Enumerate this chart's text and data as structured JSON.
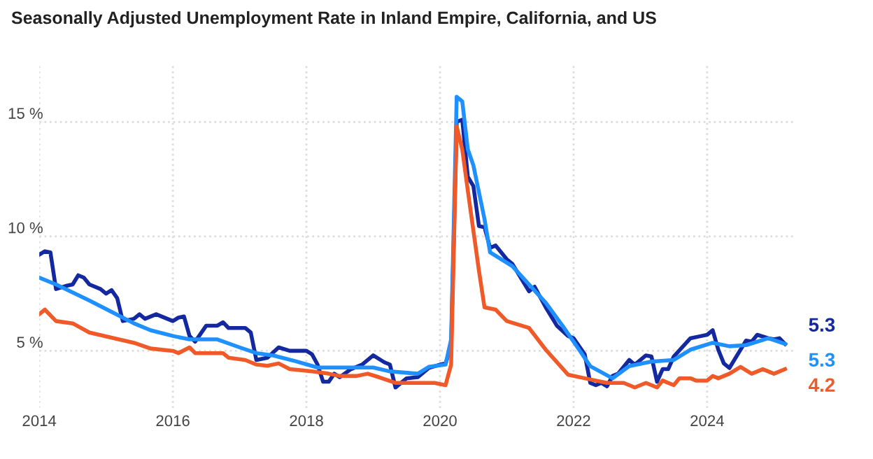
{
  "chart_data": {
    "type": "line",
    "title": "Seasonally Adjusted Unemployment Rate in Inland Empire, California, and US",
    "series": [
      {
        "color": "#1428a0",
        "x": [
          "2014-01",
          "2014-02",
          "2014-03",
          "2014-04",
          "2014-06",
          "2014-07",
          "2014-08",
          "2014-09",
          "2014-10",
          "2014-12",
          "2015-01",
          "2015-02",
          "2015-03",
          "2015-04",
          "2015-06",
          "2015-07",
          "2015-08",
          "2015-10",
          "2016-01",
          "2016-02",
          "2016-03",
          "2016-04",
          "2016-05",
          "2016-07",
          "2016-09",
          "2016-10",
          "2016-11",
          "2017-02",
          "2017-03",
          "2017-04",
          "2017-06",
          "2017-08",
          "2017-10",
          "2018-01",
          "2018-02",
          "2018-03",
          "2018-04",
          "2018-05",
          "2018-06",
          "2018-07",
          "2018-09",
          "2018-11",
          "2019-01",
          "2019-03",
          "2019-04",
          "2019-05",
          "2019-07",
          "2019-09",
          "2019-11",
          "2020-01",
          "2020-02",
          "2020-03",
          "2020-04",
          "2020-05",
          "2020-06",
          "2020-07",
          "2020-08",
          "2020-09",
          "2020-10",
          "2020-11",
          "2021-01",
          "2021-02",
          "2021-05",
          "2021-06",
          "2021-08",
          "2021-10",
          "2021-12",
          "2022-01",
          "2022-03",
          "2022-04",
          "2022-05",
          "2022-06",
          "2022-07",
          "2022-08",
          "2022-09",
          "2022-11",
          "2022-12",
          "2023-02",
          "2023-03",
          "2023-04",
          "2023-05",
          "2023-06",
          "2023-07",
          "2023-10",
          "2023-12",
          "2024-01",
          "2024-02",
          "2024-03",
          "2024-04",
          "2024-05",
          "2024-08",
          "2024-09",
          "2024-10",
          "2024-12",
          "2025-01",
          "2025-02",
          "2025-03"
        ],
        "values": [
          9.2,
          9.35,
          9.3,
          7.7,
          7.85,
          7.9,
          8.3,
          8.2,
          7.9,
          7.7,
          7.5,
          7.65,
          7.3,
          6.3,
          6.4,
          6.6,
          6.4,
          6.6,
          6.3,
          6.45,
          6.5,
          5.65,
          5.4,
          6.1,
          6.1,
          6.25,
          6.0,
          6.0,
          5.8,
          4.6,
          4.7,
          5.15,
          5.0,
          5.0,
          4.85,
          4.4,
          3.65,
          3.65,
          4.0,
          3.85,
          4.2,
          4.4,
          4.8,
          4.5,
          4.4,
          3.4,
          3.8,
          3.85,
          4.25,
          4.4,
          4.45,
          5.2,
          15.0,
          15.1,
          12.6,
          12.2,
          10.45,
          10.4,
          9.5,
          9.6,
          9.0,
          8.8,
          7.6,
          7.8,
          6.9,
          6.1,
          5.65,
          5.55,
          4.85,
          3.6,
          3.5,
          3.6,
          3.45,
          3.9,
          4.0,
          4.6,
          4.4,
          4.8,
          4.75,
          3.65,
          4.2,
          4.2,
          4.75,
          5.55,
          5.65,
          5.7,
          5.9,
          5.05,
          4.45,
          4.25,
          5.45,
          5.4,
          5.7,
          5.55,
          5.5,
          5.55,
          5.3
        ]
      },
      {
        "color": "#1e90ff",
        "x": [
          "2014-01",
          "2014-04",
          "2014-10",
          "2015-02",
          "2015-06",
          "2015-09",
          "2016-01",
          "2016-04",
          "2016-09",
          "2017-01",
          "2017-04",
          "2017-07",
          "2017-11",
          "2018-03",
          "2019-01",
          "2019-04",
          "2019-09",
          "2019-11",
          "2020-02",
          "2020-03",
          "2020-04",
          "2020-05",
          "2020-06",
          "2020-07",
          "2020-09",
          "2020-10",
          "2021-02",
          "2021-05",
          "2021-08",
          "2021-11",
          "2022-02",
          "2022-04",
          "2022-08",
          "2022-11",
          "2023-03",
          "2023-07",
          "2023-10",
          "2024-02",
          "2024-05",
          "2024-08",
          "2024-12",
          "2025-03"
        ],
        "values": [
          8.2,
          7.9,
          7.2,
          6.7,
          6.2,
          5.9,
          5.65,
          5.5,
          5.5,
          5.15,
          4.9,
          4.8,
          4.55,
          4.27,
          4.27,
          4.1,
          4.0,
          4.3,
          4.4,
          5.5,
          16.1,
          15.9,
          13.8,
          13.1,
          10.75,
          9.3,
          8.7,
          7.9,
          7.1,
          6.1,
          5.05,
          4.33,
          3.8,
          4.33,
          4.53,
          4.6,
          5.05,
          5.35,
          5.2,
          5.25,
          5.55,
          5.3
        ]
      },
      {
        "color": "#f05a28",
        "x": [
          "2014-01",
          "2014-02",
          "2014-04",
          "2014-07",
          "2014-10",
          "2015-06",
          "2015-09",
          "2016-01",
          "2016-02",
          "2016-04",
          "2016-05",
          "2016-10",
          "2016-11",
          "2017-02",
          "2017-04",
          "2017-06",
          "2017-08",
          "2017-10",
          "2018-02",
          "2018-05",
          "2018-07",
          "2018-10",
          "2018-12",
          "2019-02",
          "2019-05",
          "2019-09",
          "2019-12",
          "2020-02",
          "2020-03",
          "2020-04",
          "2020-05",
          "2020-06",
          "2020-08",
          "2020-09",
          "2020-11",
          "2021-01",
          "2021-05",
          "2021-08",
          "2021-12",
          "2022-03",
          "2022-07",
          "2022-10",
          "2022-12",
          "2023-02",
          "2023-04",
          "2023-05",
          "2023-07",
          "2023-08",
          "2023-10",
          "2023-11",
          "2024-01",
          "2024-02",
          "2024-03",
          "2024-05",
          "2024-07",
          "2024-09",
          "2024-11",
          "2025-01",
          "2025-03"
        ],
        "values": [
          6.6,
          6.8,
          6.3,
          6.2,
          5.8,
          5.35,
          5.1,
          5.0,
          4.9,
          5.15,
          4.9,
          4.9,
          4.7,
          4.6,
          4.4,
          4.35,
          4.45,
          4.2,
          4.1,
          4.0,
          3.9,
          3.9,
          4.0,
          3.85,
          3.6,
          3.6,
          3.6,
          3.5,
          4.4,
          14.8,
          13.8,
          12.0,
          8.5,
          6.9,
          6.8,
          6.3,
          6.0,
          5.05,
          3.96,
          3.8,
          3.6,
          3.6,
          3.4,
          3.6,
          3.4,
          3.7,
          3.5,
          3.8,
          3.8,
          3.7,
          3.7,
          3.9,
          3.8,
          4.0,
          4.3,
          4.0,
          4.2,
          4.0,
          4.2
        ]
      }
    ],
    "xlim": [
      "2014-01",
      "2025-05"
    ],
    "xticks": [
      {
        "value": "2014",
        "label": "2014"
      },
      {
        "value": "2016",
        "label": "2016"
      },
      {
        "value": "2018",
        "label": "2018"
      },
      {
        "value": "2020",
        "label": "2020"
      },
      {
        "value": "2022",
        "label": "2022"
      },
      {
        "value": "2024",
        "label": "2024"
      }
    ],
    "ylim": [
      2.5,
      17.5
    ],
    "yticks": [
      {
        "value": 5,
        "label": "5 %"
      },
      {
        "value": 10,
        "label": "10 %"
      },
      {
        "value": 15,
        "label": "15 %"
      }
    ],
    "grid": true,
    "annotations": [
      {
        "text": "5.3",
        "x": "2025-03",
        "y": 5.3
      },
      {
        "text": "5.3",
        "x": "2025-03",
        "y": 5.3
      },
      {
        "text": "4.2",
        "x": "2025-03",
        "y": 4.2
      }
    ]
  }
}
